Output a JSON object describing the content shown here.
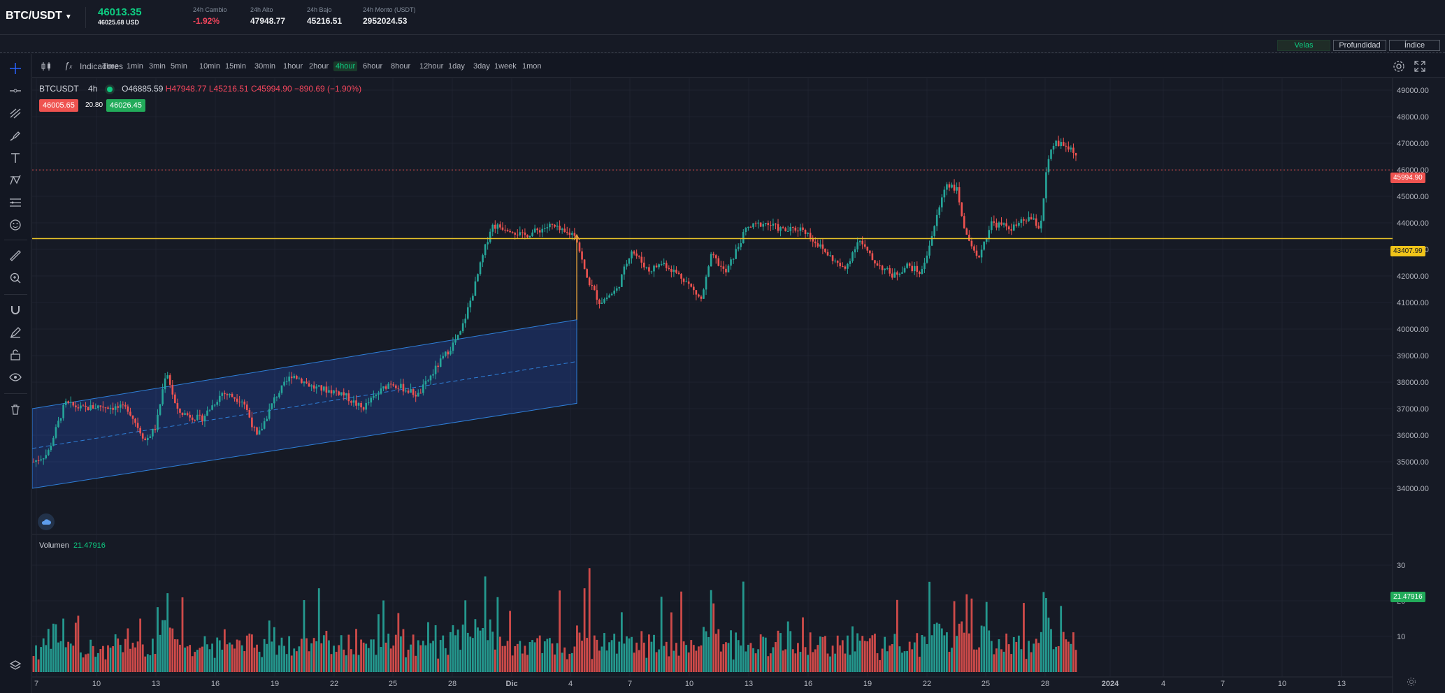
{
  "header": {
    "pair": "BTC/USDT",
    "last_price": "46013.35",
    "last_price_usd": "46025.68 USD",
    "stats": [
      {
        "label": "24h Cambio",
        "value": "-1.92%",
        "negative": true
      },
      {
        "label": "24h Alto",
        "value": "47948.77",
        "negative": false
      },
      {
        "label": "24h Bajo",
        "value": "45216.51",
        "negative": false
      },
      {
        "label": "24h Monto (USDT)",
        "value": "2952024.53",
        "negative": false
      }
    ]
  },
  "view_tabs": [
    "Velas",
    "Profundidad",
    "Índice"
  ],
  "toolbar": {
    "indicators_label": "Indicadores",
    "timeframes": [
      "Time",
      "1min",
      "3min",
      "5min",
      "10min",
      "15min",
      "30min",
      "1hour",
      "2hour",
      "4hour",
      "6hour",
      "8hour",
      "12hour",
      "1day",
      "3day",
      "1week",
      "1mon"
    ],
    "active_timeframe": "4hour"
  },
  "legend": {
    "symbol": "BTCUSDT",
    "interval": "4h",
    "open": "O46885.59",
    "high": "H47948.77",
    "low": "L45216.51",
    "close": "C45994.90",
    "change": "−890.69 (−1.90%)",
    "bid": "46005.65",
    "spread": "20.80",
    "ask": "46026.45"
  },
  "volume_legend": {
    "label": "Volumen",
    "value": "21.47916"
  },
  "price_labels": {
    "last": "45994.90",
    "line": "43407.99",
    "volume": "21.47916"
  },
  "colors": {
    "up": "#26a69a",
    "down": "#ef5350",
    "accent": "#2962ff",
    "horizontal_line": "#e6c229"
  },
  "chart_data": {
    "type": "candlestick",
    "y_axis_ticks": [
      49000,
      48000,
      47000,
      46000,
      45000,
      44000,
      43000,
      42000,
      41000,
      40000,
      39000,
      38000,
      37000,
      36000,
      35000,
      34000
    ],
    "y_range": [
      33500,
      49500
    ],
    "x_axis_ticks": [
      "7",
      "10",
      "13",
      "16",
      "19",
      "22",
      "25",
      "28",
      "Dic",
      "4",
      "7",
      "10",
      "13",
      "16",
      "19",
      "22",
      "25",
      "28",
      "2024",
      "4",
      "7",
      "10",
      "13"
    ],
    "volume_ticks": [
      30,
      20,
      10
    ],
    "series": [
      {
        "name": "BTCUSDT",
        "interval": "4h",
        "last_close": 45994.9
      }
    ],
    "volume_last": 21.47916,
    "horizontal_line_price": 43407.99,
    "channel": {
      "start_lower": 34000,
      "start_upper": 37000,
      "end_lower": 37200,
      "end_upper": 40350
    }
  }
}
